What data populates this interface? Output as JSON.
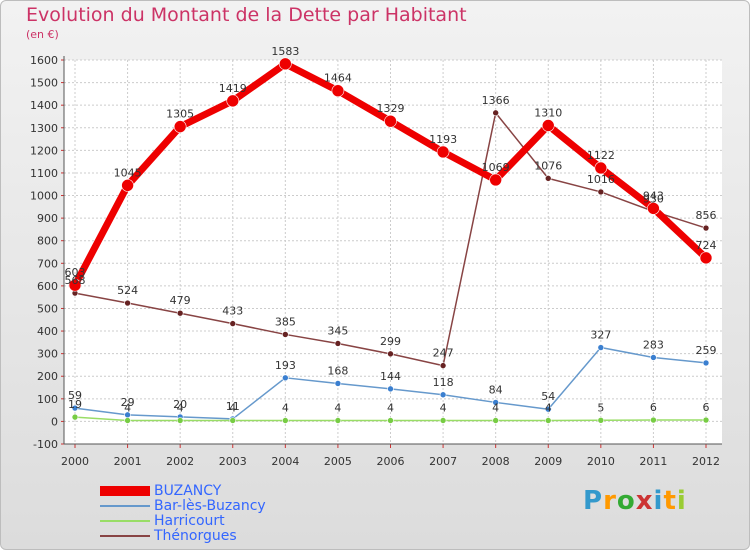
{
  "chart_data": {
    "type": "line",
    "title": "Evolution du Montant de la Dette par Habitant",
    "subtitle": "(en €)",
    "x": [
      "2000",
      "2001",
      "2002",
      "2003",
      "2004",
      "2005",
      "2006",
      "2007",
      "2008",
      "2009",
      "2010",
      "2011",
      "2012"
    ],
    "ylim": [
      -100,
      1600
    ],
    "yticks": [
      -100,
      0,
      100,
      200,
      300,
      400,
      500,
      600,
      700,
      800,
      900,
      1000,
      1100,
      1200,
      1300,
      1400,
      1500,
      1600
    ],
    "grid": true,
    "legend_position": "bottom-left",
    "series": [
      {
        "name": "Bar-lès-Buzancy",
        "color": "#6699cc",
        "marker": "#3a7fd0",
        "values": [
          59,
          29,
          20,
          11,
          193,
          168,
          144,
          118,
          84,
          54,
          327,
          283,
          259
        ],
        "labels": [
          "59",
          "29",
          "20",
          "11",
          "193",
          "168",
          "144",
          "118",
          "84",
          "54",
          "327",
          "283",
          "259"
        ]
      },
      {
        "name": "Harricourt",
        "color": "#99dd66",
        "marker": "#77cc44",
        "values": [
          19,
          4,
          4,
          4,
          4,
          4,
          4,
          4,
          4,
          4,
          5,
          6,
          6
        ],
        "labels": [
          "19",
          "4",
          "4",
          "4",
          "4",
          "4",
          "4",
          "4",
          "4",
          "4",
          "5",
          "6",
          "6"
        ]
      },
      {
        "name": "Thénorgues",
        "color": "#884444",
        "marker": "#662222",
        "values": [
          568,
          524,
          479,
          433,
          385,
          345,
          299,
          247,
          1366,
          1076,
          1016,
          930,
          856
        ],
        "labels": [
          "568",
          "524",
          "479",
          "433",
          "385",
          "345",
          "299",
          "247",
          "1366",
          "1076",
          "1016",
          "930",
          "856"
        ]
      },
      {
        "name": "BUZANCY",
        "color": "#ee0000",
        "marker": "#ee0000",
        "values": [
          603,
          1045,
          1305,
          1419,
          1583,
          1464,
          1329,
          1193,
          1069,
          1310,
          1122,
          943,
          724
        ],
        "labels": [
          "603",
          "1045",
          "1305",
          "1419",
          "1583",
          "1464",
          "1329",
          "1193",
          "1069",
          "1310",
          "1122",
          "943",
          "724"
        ]
      }
    ]
  },
  "legend": [
    {
      "name": "BUZANCY",
      "color": "#ee0000",
      "thickness": 10,
      "text_color": "#3366ff"
    },
    {
      "name": "Bar-lès-Buzancy",
      "color": "#6699cc",
      "thickness": 2,
      "text_color": "#3366ff"
    },
    {
      "name": "Harricourt",
      "color": "#99dd66",
      "thickness": 2,
      "text_color": "#3366ff"
    },
    {
      "name": "Thénorgues",
      "color": "#884444",
      "thickness": 2,
      "text_color": "#3366ff"
    }
  ],
  "brand": {
    "letters": [
      "P",
      "r",
      "o",
      "x",
      "i",
      "t",
      "i"
    ],
    "colors": [
      "#3399cc",
      "#ff9900",
      "#33aa33",
      "#cc3333",
      "#3399cc",
      "#ff9900",
      "#99cc33"
    ]
  }
}
